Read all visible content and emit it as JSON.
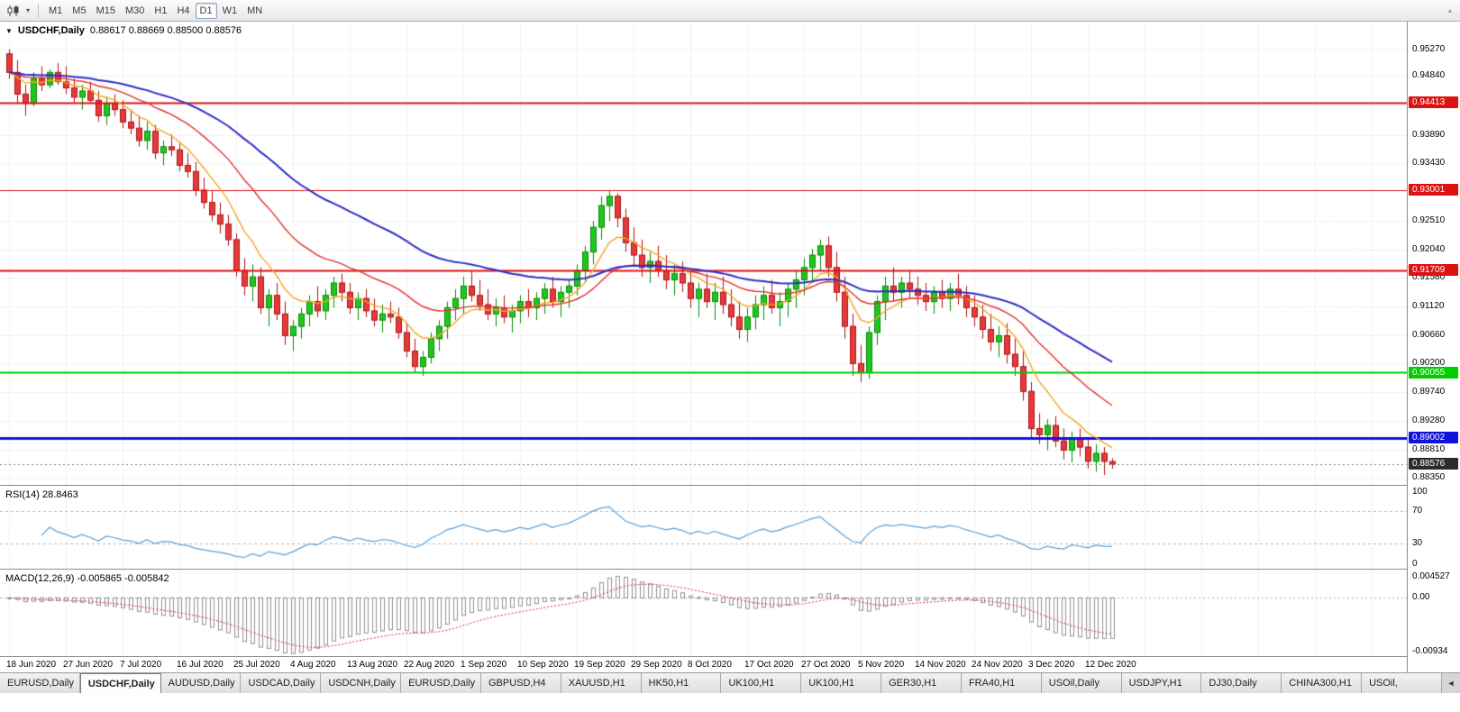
{
  "toolbar": {
    "chart_type_icon": "candlestick-icon",
    "dropdown_icon": "chevron-down-icon",
    "timeframes": [
      "M1",
      "M5",
      "M15",
      "M30",
      "H1",
      "H4",
      "D1",
      "W1",
      "MN"
    ],
    "active_timeframe": "D1",
    "overflow_icon": "triangle-up-icon"
  },
  "chart": {
    "header": {
      "collapse_icon": "triangle-down-icon",
      "symbol": "USDCHF,Daily",
      "ohlc": "0.88617 0.88669 0.88500 0.88576"
    },
    "price_axis": {
      "labels": [
        "0.95270",
        "0.94840",
        "0.93890",
        "0.93430",
        "0.92510",
        "0.92040",
        "0.91580",
        "0.91120",
        "0.90660",
        "0.90200",
        "0.89740",
        "0.89280",
        "0.88810",
        "0.88350"
      ]
    },
    "hlines": [
      {
        "price": 0.94413,
        "label": "0.94413",
        "color": "#DD1111",
        "width": 2
      },
      {
        "price": 0.93001,
        "label": "0.93001",
        "color": "#DD1111",
        "width": 1
      },
      {
        "price": 0.91709,
        "label": "0.91709",
        "color": "#DD1111",
        "width": 2
      },
      {
        "price": 0.90055,
        "label": "0.90055",
        "color": "#00CC00",
        "width": 2
      },
      {
        "price": 0.89002,
        "label": "0.89002",
        "color": "#1111DD",
        "width": 3
      }
    ],
    "current_price": {
      "price": 0.88576,
      "label": "0.88576",
      "badge_color": "#2b2b2b"
    }
  },
  "tabs": {
    "items": [
      "EURUSD,Daily",
      "USDCHF,Daily",
      "AUDUSD,Daily",
      "USDCAD,Daily",
      "USDCNH,Daily",
      "EURUSD,Daily",
      "GBPUSD,H4",
      "XAUUSD,H1",
      "HK50,H1",
      "UK100,H1",
      "UK100,H1",
      "GER30,H1",
      "FRA40,H1",
      "USOil,Daily",
      "USDJPY,H1",
      "DJ30,Daily",
      "CHINA300,H1",
      "USOil,"
    ],
    "active_index": 1,
    "scroll_left_icon": "◄"
  },
  "colors": {
    "bull_border": "#028C02",
    "bull_fill": "#21C421",
    "bear_border": "#B01010",
    "bear_fill": "#E23B3B",
    "grid": "#d8d8d8",
    "rsi_line": "#55A0DC",
    "rsi_level": "#b4b4b4",
    "macd_hist": "#909090",
    "macd_signal": "#E03030",
    "current_price_line": "#777777"
  },
  "chart_data": {
    "type": "candlestick",
    "symbol": "USDCHF",
    "timeframe": "Daily",
    "price_range": {
      "min": 0.8824,
      "max": 0.9572
    },
    "bars_per_x_label": 7,
    "x_labels": [
      "18 Jun 2020",
      "27 Jun 2020",
      "7 Jul 2020",
      "16 Jul 2020",
      "25 Jul 2020",
      "4 Aug 2020",
      "13 Aug 2020",
      "22 Aug 2020",
      "1 Sep 2020",
      "10 Sep 2020",
      "19 Sep 2020",
      "29 Sep 2020",
      "8 Oct 2020",
      "17 Oct 2020",
      "27 Oct 2020",
      "5 Nov 2020",
      "14 Nov 2020",
      "24 Nov 2020",
      "3 Dec 2020",
      "12 Dec 2020"
    ],
    "moving_averages": [
      {
        "period": 8,
        "color": "#F6A623",
        "width": 1.4
      },
      {
        "period": 21,
        "color": "#E33030",
        "width": 1.4
      },
      {
        "period": 45,
        "color": "#2E2EC8",
        "width": 2
      }
    ],
    "indicators": [
      {
        "name": "RSI",
        "label": "RSI(14) 28.8463",
        "period": 14,
        "value": 28.8463,
        "range": [
          0,
          100
        ],
        "levels": [
          70,
          30
        ],
        "axis_labels": [
          "100",
          "70",
          "30",
          "0"
        ]
      },
      {
        "name": "MACD",
        "label": "MACD(12,26,9) -0.005865 -0.005842",
        "params": [
          12,
          26,
          9
        ],
        "values": [
          -0.005865,
          -0.005842
        ],
        "range": [
          -0.00934,
          0.004527
        ],
        "axis_labels": [
          "0.004527",
          "0.00",
          "-0.00934"
        ]
      }
    ],
    "candles": [
      [
        0.952,
        0.9527,
        0.948,
        0.949
      ],
      [
        0.949,
        0.951,
        0.944,
        0.9455
      ],
      [
        0.9455,
        0.947,
        0.942,
        0.944
      ],
      [
        0.944,
        0.949,
        0.9435,
        0.948
      ],
      [
        0.948,
        0.95,
        0.946,
        0.947
      ],
      [
        0.947,
        0.9495,
        0.9465,
        0.949
      ],
      [
        0.949,
        0.9505,
        0.947,
        0.9475
      ],
      [
        0.9475,
        0.95,
        0.9455,
        0.9465
      ],
      [
        0.9465,
        0.948,
        0.944,
        0.945
      ],
      [
        0.945,
        0.947,
        0.943,
        0.946
      ],
      [
        0.946,
        0.9475,
        0.944,
        0.9445
      ],
      [
        0.9445,
        0.946,
        0.941,
        0.942
      ],
      [
        0.942,
        0.945,
        0.9405,
        0.944
      ],
      [
        0.944,
        0.9455,
        0.942,
        0.943
      ],
      [
        0.943,
        0.9445,
        0.94,
        0.941
      ],
      [
        0.941,
        0.943,
        0.939,
        0.94
      ],
      [
        0.94,
        0.942,
        0.937,
        0.938
      ],
      [
        0.938,
        0.941,
        0.9365,
        0.9395
      ],
      [
        0.9395,
        0.9405,
        0.935,
        0.936
      ],
      [
        0.936,
        0.938,
        0.934,
        0.937
      ],
      [
        0.937,
        0.939,
        0.9355,
        0.9365
      ],
      [
        0.9365,
        0.9375,
        0.933,
        0.934
      ],
      [
        0.934,
        0.936,
        0.932,
        0.933
      ],
      [
        0.933,
        0.9345,
        0.929,
        0.93
      ],
      [
        0.93,
        0.932,
        0.927,
        0.928
      ],
      [
        0.928,
        0.93,
        0.925,
        0.926
      ],
      [
        0.926,
        0.928,
        0.923,
        0.9245
      ],
      [
        0.9245,
        0.926,
        0.921,
        0.922
      ],
      [
        0.922,
        0.923,
        0.916,
        0.917
      ],
      [
        0.917,
        0.919,
        0.913,
        0.9145
      ],
      [
        0.9145,
        0.918,
        0.912,
        0.916
      ],
      [
        0.916,
        0.9175,
        0.91,
        0.911
      ],
      [
        0.911,
        0.914,
        0.908,
        0.913
      ],
      [
        0.913,
        0.915,
        0.909,
        0.91
      ],
      [
        0.91,
        0.912,
        0.905,
        0.9065
      ],
      [
        0.9065,
        0.909,
        0.904,
        0.908
      ],
      [
        0.908,
        0.911,
        0.906,
        0.91
      ],
      [
        0.91,
        0.913,
        0.908,
        0.912
      ],
      [
        0.912,
        0.9145,
        0.9095,
        0.9105
      ],
      [
        0.9105,
        0.914,
        0.909,
        0.913
      ],
      [
        0.913,
        0.916,
        0.911,
        0.915
      ],
      [
        0.915,
        0.9165,
        0.912,
        0.9135
      ],
      [
        0.9135,
        0.915,
        0.91,
        0.911
      ],
      [
        0.911,
        0.9135,
        0.909,
        0.9125
      ],
      [
        0.9125,
        0.914,
        0.9095,
        0.9105
      ],
      [
        0.9105,
        0.9125,
        0.908,
        0.909
      ],
      [
        0.909,
        0.9115,
        0.907,
        0.91
      ],
      [
        0.91,
        0.912,
        0.9085,
        0.9095
      ],
      [
        0.9095,
        0.911,
        0.906,
        0.907
      ],
      [
        0.907,
        0.9085,
        0.903,
        0.904
      ],
      [
        0.904,
        0.906,
        0.9005,
        0.9015
      ],
      [
        0.9015,
        0.904,
        0.9,
        0.903
      ],
      [
        0.903,
        0.907,
        0.902,
        0.906
      ],
      [
        0.906,
        0.909,
        0.904,
        0.908
      ],
      [
        0.908,
        0.912,
        0.906,
        0.911
      ],
      [
        0.911,
        0.914,
        0.909,
        0.9125
      ],
      [
        0.9125,
        0.916,
        0.91,
        0.9145
      ],
      [
        0.9145,
        0.917,
        0.912,
        0.913
      ],
      [
        0.913,
        0.9155,
        0.9105,
        0.9115
      ],
      [
        0.9115,
        0.914,
        0.909,
        0.91
      ],
      [
        0.91,
        0.9125,
        0.908,
        0.911
      ],
      [
        0.911,
        0.913,
        0.9085,
        0.9095
      ],
      [
        0.9095,
        0.9115,
        0.907,
        0.9105
      ],
      [
        0.9105,
        0.913,
        0.9085,
        0.912
      ],
      [
        0.912,
        0.914,
        0.9095,
        0.911
      ],
      [
        0.911,
        0.9135,
        0.909,
        0.9125
      ],
      [
        0.9125,
        0.915,
        0.91,
        0.914
      ],
      [
        0.914,
        0.916,
        0.911,
        0.912
      ],
      [
        0.912,
        0.9145,
        0.9095,
        0.9135
      ],
      [
        0.9135,
        0.9155,
        0.911,
        0.9145
      ],
      [
        0.9145,
        0.918,
        0.913,
        0.917
      ],
      [
        0.917,
        0.921,
        0.915,
        0.92
      ],
      [
        0.92,
        0.925,
        0.918,
        0.924
      ],
      [
        0.924,
        0.929,
        0.922,
        0.9275
      ],
      [
        0.9275,
        0.93,
        0.925,
        0.929
      ],
      [
        0.929,
        0.9295,
        0.924,
        0.9255
      ],
      [
        0.9255,
        0.927,
        0.92,
        0.9215
      ],
      [
        0.9215,
        0.924,
        0.918,
        0.9195
      ],
      [
        0.9195,
        0.922,
        0.916,
        0.9175
      ],
      [
        0.9175,
        0.92,
        0.915,
        0.9185
      ],
      [
        0.9185,
        0.921,
        0.916,
        0.917
      ],
      [
        0.917,
        0.9195,
        0.914,
        0.9155
      ],
      [
        0.9155,
        0.918,
        0.913,
        0.9165
      ],
      [
        0.9165,
        0.9185,
        0.9135,
        0.915
      ],
      [
        0.915,
        0.917,
        0.911,
        0.9125
      ],
      [
        0.9125,
        0.915,
        0.9095,
        0.914
      ],
      [
        0.914,
        0.9165,
        0.911,
        0.912
      ],
      [
        0.912,
        0.915,
        0.909,
        0.9135
      ],
      [
        0.9135,
        0.916,
        0.91,
        0.9115
      ],
      [
        0.9115,
        0.914,
        0.908,
        0.9095
      ],
      [
        0.9095,
        0.912,
        0.906,
        0.9075
      ],
      [
        0.9075,
        0.911,
        0.9055,
        0.9095
      ],
      [
        0.9095,
        0.913,
        0.9075,
        0.9115
      ],
      [
        0.9115,
        0.9145,
        0.909,
        0.913
      ],
      [
        0.913,
        0.9155,
        0.91,
        0.911
      ],
      [
        0.911,
        0.9135,
        0.908,
        0.912
      ],
      [
        0.912,
        0.915,
        0.9095,
        0.914
      ],
      [
        0.914,
        0.917,
        0.911,
        0.9155
      ],
      [
        0.9155,
        0.919,
        0.913,
        0.9175
      ],
      [
        0.9175,
        0.9205,
        0.915,
        0.9195
      ],
      [
        0.9195,
        0.922,
        0.917,
        0.921
      ],
      [
        0.921,
        0.9225,
        0.916,
        0.9175
      ],
      [
        0.9175,
        0.92,
        0.912,
        0.9135
      ],
      [
        0.9135,
        0.916,
        0.906,
        0.908
      ],
      [
        0.908,
        0.91,
        0.9,
        0.902
      ],
      [
        0.902,
        0.905,
        0.899,
        0.9005
      ],
      [
        0.9005,
        0.908,
        0.8995,
        0.907
      ],
      [
        0.907,
        0.913,
        0.905,
        0.912
      ],
      [
        0.912,
        0.916,
        0.909,
        0.9145
      ],
      [
        0.9145,
        0.9175,
        0.912,
        0.9135
      ],
      [
        0.9135,
        0.916,
        0.911,
        0.915
      ],
      [
        0.915,
        0.917,
        0.9125,
        0.914
      ],
      [
        0.914,
        0.916,
        0.9115,
        0.913
      ],
      [
        0.913,
        0.915,
        0.9105,
        0.912
      ],
      [
        0.912,
        0.9145,
        0.91,
        0.9135
      ],
      [
        0.9135,
        0.9155,
        0.911,
        0.9125
      ],
      [
        0.9125,
        0.915,
        0.9105,
        0.914
      ],
      [
        0.914,
        0.9165,
        0.9115,
        0.913
      ],
      [
        0.913,
        0.9145,
        0.9095,
        0.911
      ],
      [
        0.911,
        0.913,
        0.908,
        0.9095
      ],
      [
        0.9095,
        0.9115,
        0.906,
        0.9075
      ],
      [
        0.9075,
        0.91,
        0.904,
        0.9055
      ],
      [
        0.9055,
        0.908,
        0.903,
        0.9065
      ],
      [
        0.9065,
        0.9085,
        0.902,
        0.9035
      ],
      [
        0.9035,
        0.906,
        0.9,
        0.9015
      ],
      [
        0.9015,
        0.904,
        0.896,
        0.8975
      ],
      [
        0.8975,
        0.899,
        0.89,
        0.8915
      ],
      [
        0.8915,
        0.894,
        0.889,
        0.8905
      ],
      [
        0.8905,
        0.893,
        0.888,
        0.892
      ],
      [
        0.892,
        0.8935,
        0.8885,
        0.8895
      ],
      [
        0.8895,
        0.8915,
        0.8865,
        0.888
      ],
      [
        0.888,
        0.891,
        0.886,
        0.89
      ],
      [
        0.89,
        0.8915,
        0.887,
        0.8885
      ],
      [
        0.8885,
        0.89,
        0.885,
        0.8862
      ],
      [
        0.8862,
        0.889,
        0.8845,
        0.8875
      ],
      [
        0.8875,
        0.8885,
        0.884,
        0.8862
      ],
      [
        0.88617,
        0.88669,
        0.885,
        0.88576
      ]
    ]
  }
}
